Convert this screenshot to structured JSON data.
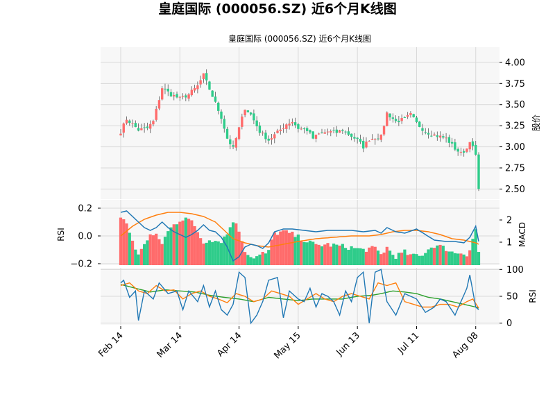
{
  "figure": {
    "suptitle": "皇庭国际 (000056.SZ) 近6个月K线图"
  },
  "colors": {
    "up": "#ff6b6b",
    "down": "#2ecc8a",
    "macd_line": "#1f77b4",
    "signal_line": "#ff7f0e",
    "rsi6": "#1f77b4",
    "rsi12": "#ff7f0e",
    "rsi24": "#2ca02c",
    "panel_bg": "#f7f7f7",
    "grid": "#d9d9d9"
  },
  "chart_data": [
    {
      "type": "candlestick",
      "title": "皇庭国际 (000056.SZ) 近6个月K线图",
      "ylabel": "股价",
      "ylim": [
        2.38,
        4.18
      ],
      "yticks": [
        2.5,
        2.75,
        3.0,
        3.25,
        3.5,
        3.75,
        4.0
      ],
      "x_ticks": [
        "Feb 14",
        "Mar 14",
        "Apr 14",
        "May 15",
        "Jun 13",
        "Jul 11",
        "Aug 08"
      ],
      "x_tick_index": [
        0,
        20,
        40,
        60,
        80,
        100,
        120
      ],
      "n_bars": 122,
      "grid": true,
      "close_anchors": [
        [
          0,
          3.18
        ],
        [
          2,
          3.33
        ],
        [
          6,
          3.2
        ],
        [
          9,
          3.22
        ],
        [
          11,
          3.3
        ],
        [
          14,
          3.7
        ],
        [
          17,
          3.62
        ],
        [
          20,
          3.57
        ],
        [
          23,
          3.62
        ],
        [
          26,
          3.72
        ],
        [
          28,
          3.85
        ],
        [
          31,
          3.6
        ],
        [
          34,
          3.35
        ],
        [
          36,
          3.1
        ],
        [
          38,
          2.98
        ],
        [
          40,
          3.22
        ],
        [
          42,
          3.46
        ],
        [
          44,
          3.38
        ],
        [
          47,
          3.18
        ],
        [
          50,
          3.08
        ],
        [
          53,
          3.17
        ],
        [
          56,
          3.27
        ],
        [
          58,
          3.3
        ],
        [
          60,
          3.22
        ],
        [
          63,
          3.2
        ],
        [
          65,
          3.1
        ],
        [
          67,
          3.15
        ],
        [
          70,
          3.18
        ],
        [
          73,
          3.17
        ],
        [
          75,
          3.2
        ],
        [
          77,
          3.15
        ],
        [
          80,
          3.08
        ],
        [
          82,
          3.0
        ],
        [
          84,
          3.09
        ],
        [
          88,
          3.12
        ],
        [
          90,
          3.4
        ],
        [
          93,
          3.3
        ],
        [
          96,
          3.33
        ],
        [
          98,
          3.38
        ],
        [
          100,
          3.28
        ],
        [
          103,
          3.18
        ],
        [
          106,
          3.14
        ],
        [
          110,
          3.1
        ],
        [
          113,
          2.98
        ],
        [
          115,
          2.92
        ],
        [
          117,
          2.98
        ],
        [
          118,
          3.08
        ],
        [
          120,
          2.9
        ],
        [
          121,
          2.5
        ]
      ],
      "ohlc_note": "daily bars for about six months of trading"
    },
    {
      "type": "bar+line",
      "ylabel": "MACD",
      "left_ticks": [
        "0.2",
        "0.0",
        "−0.2"
      ],
      "left_tick_values": [
        0.2,
        0.0,
        -0.2
      ],
      "right_ticks": [
        "2",
        "1"
      ],
      "right_tick_values": [
        2,
        1
      ],
      "ylim_left": [
        -0.21,
        0.26
      ],
      "macd_anchors": [
        [
          0,
          0.17
        ],
        [
          2,
          0.18
        ],
        [
          5,
          0.12
        ],
        [
          8,
          0.06
        ],
        [
          10,
          0.04
        ],
        [
          12,
          0.06
        ],
        [
          14,
          0.1
        ],
        [
          16,
          0.06
        ],
        [
          18,
          0.03
        ],
        [
          20,
          0.01
        ],
        [
          22,
          -0.01
        ],
        [
          24,
          0.01
        ],
        [
          26,
          0.04
        ],
        [
          28,
          0.08
        ],
        [
          30,
          0.04
        ],
        [
          32,
          0.03
        ],
        [
          34,
          -0.01
        ],
        [
          36,
          -0.08
        ],
        [
          38,
          -0.18
        ],
        [
          40,
          -0.15
        ],
        [
          42,
          -0.08
        ],
        [
          44,
          -0.06
        ],
        [
          46,
          -0.07
        ],
        [
          48,
          -0.09
        ],
        [
          50,
          -0.05
        ],
        [
          52,
          0.03
        ],
        [
          55,
          0.05
        ],
        [
          58,
          0.05
        ],
        [
          62,
          0.04
        ],
        [
          66,
          0.03
        ],
        [
          70,
          0.04
        ],
        [
          74,
          0.04
        ],
        [
          78,
          0.04
        ],
        [
          82,
          0.03
        ],
        [
          86,
          0.04
        ],
        [
          88,
          0.02
        ],
        [
          90,
          0.06
        ],
        [
          93,
          0.03
        ],
        [
          96,
          0.02
        ],
        [
          100,
          0.05
        ],
        [
          103,
          0.01
        ],
        [
          106,
          -0.03
        ],
        [
          110,
          -0.04
        ],
        [
          113,
          -0.04
        ],
        [
          116,
          -0.05
        ],
        [
          118,
          -0.01
        ],
        [
          120,
          0.07
        ],
        [
          121,
          -0.04
        ]
      ],
      "signal_anchors": [
        [
          0,
          0.0
        ],
        [
          4,
          0.07
        ],
        [
          8,
          0.12
        ],
        [
          12,
          0.15
        ],
        [
          16,
          0.17
        ],
        [
          20,
          0.17
        ],
        [
          24,
          0.16
        ],
        [
          28,
          0.14
        ],
        [
          32,
          0.1
        ],
        [
          35,
          0.04
        ],
        [
          38,
          -0.02
        ],
        [
          42,
          -0.05
        ],
        [
          46,
          -0.07
        ],
        [
          50,
          -0.08
        ],
        [
          55,
          -0.06
        ],
        [
          60,
          -0.04
        ],
        [
          66,
          -0.02
        ],
        [
          72,
          -0.01
        ],
        [
          78,
          0.0
        ],
        [
          84,
          0.0
        ],
        [
          88,
          0.01
        ],
        [
          92,
          0.03
        ],
        [
          96,
          0.04
        ],
        [
          100,
          0.04
        ],
        [
          104,
          0.03
        ],
        [
          108,
          0.01
        ],
        [
          112,
          -0.02
        ],
        [
          116,
          -0.03
        ],
        [
          120,
          -0.05
        ],
        [
          121,
          -0.06
        ]
      ],
      "histogram_note": "bars drawn upward from panel base, coloured by candle direction"
    },
    {
      "type": "line",
      "ylabel": "RSI",
      "ylim": [
        -3,
        103
      ],
      "yticks": [
        0,
        50,
        100
      ],
      "series_anchors": {
        "rsi6": [
          [
            0,
            75
          ],
          [
            1,
            80
          ],
          [
            3,
            48
          ],
          [
            5,
            60
          ],
          [
            6,
            5
          ],
          [
            8,
            60
          ],
          [
            11,
            45
          ],
          [
            13,
            75
          ],
          [
            16,
            55
          ],
          [
            19,
            60
          ],
          [
            21,
            25
          ],
          [
            23,
            60
          ],
          [
            26,
            40
          ],
          [
            28,
            70
          ],
          [
            30,
            30
          ],
          [
            32,
            60
          ],
          [
            34,
            25
          ],
          [
            36,
            15
          ],
          [
            38,
            35
          ],
          [
            40,
            95
          ],
          [
            42,
            85
          ],
          [
            44,
            0
          ],
          [
            46,
            15
          ],
          [
            48,
            40
          ],
          [
            50,
            80
          ],
          [
            53,
            85
          ],
          [
            55,
            10
          ],
          [
            57,
            60
          ],
          [
            60,
            45
          ],
          [
            62,
            40
          ],
          [
            64,
            65
          ],
          [
            66,
            30
          ],
          [
            68,
            55
          ],
          [
            70,
            50
          ],
          [
            72,
            40
          ],
          [
            74,
            15
          ],
          [
            76,
            60
          ],
          [
            78,
            40
          ],
          [
            80,
            85
          ],
          [
            82,
            95
          ],
          [
            84,
            0
          ],
          [
            86,
            95
          ],
          [
            88,
            100
          ],
          [
            90,
            40
          ],
          [
            93,
            15
          ],
          [
            96,
            55
          ],
          [
            100,
            45
          ],
          [
            103,
            20
          ],
          [
            106,
            30
          ],
          [
            108,
            45
          ],
          [
            110,
            40
          ],
          [
            113,
            15
          ],
          [
            115,
            40
          ],
          [
            117,
            65
          ],
          [
            118,
            90
          ],
          [
            120,
            30
          ],
          [
            121,
            25
          ]
        ],
        "rsi12": [
          [
            0,
            70
          ],
          [
            3,
            75
          ],
          [
            6,
            60
          ],
          [
            9,
            55
          ],
          [
            12,
            70
          ],
          [
            15,
            60
          ],
          [
            18,
            62
          ],
          [
            21,
            45
          ],
          [
            24,
            55
          ],
          [
            27,
            60
          ],
          [
            30,
            50
          ],
          [
            33,
            45
          ],
          [
            36,
            38
          ],
          [
            39,
            55
          ],
          [
            42,
            50
          ],
          [
            45,
            40
          ],
          [
            48,
            45
          ],
          [
            51,
            60
          ],
          [
            54,
            55
          ],
          [
            57,
            50
          ],
          [
            60,
            35
          ],
          [
            63,
            45
          ],
          [
            66,
            55
          ],
          [
            69,
            45
          ],
          [
            72,
            40
          ],
          [
            75,
            50
          ],
          [
            78,
            55
          ],
          [
            81,
            50
          ],
          [
            84,
            45
          ],
          [
            87,
            75
          ],
          [
            90,
            70
          ],
          [
            93,
            75
          ],
          [
            96,
            40
          ],
          [
            99,
            35
          ],
          [
            102,
            30
          ],
          [
            105,
            30
          ],
          [
            108,
            35
          ],
          [
            111,
            35
          ],
          [
            114,
            30
          ],
          [
            117,
            40
          ],
          [
            119,
            45
          ],
          [
            121,
            28
          ]
        ],
        "rsi24": [
          [
            0,
            72
          ],
          [
            5,
            65
          ],
          [
            10,
            58
          ],
          [
            15,
            62
          ],
          [
            20,
            60
          ],
          [
            25,
            58
          ],
          [
            30,
            52
          ],
          [
            35,
            48
          ],
          [
            40,
            45
          ],
          [
            45,
            40
          ],
          [
            50,
            48
          ],
          [
            55,
            45
          ],
          [
            60,
            42
          ],
          [
            65,
            45
          ],
          [
            70,
            45
          ],
          [
            75,
            45
          ],
          [
            80,
            50
          ],
          [
            85,
            52
          ],
          [
            88,
            55
          ],
          [
            92,
            60
          ],
          [
            96,
            58
          ],
          [
            100,
            55
          ],
          [
            104,
            48
          ],
          [
            108,
            45
          ],
          [
            112,
            40
          ],
          [
            116,
            35
          ],
          [
            120,
            30
          ],
          [
            121,
            28
          ]
        ]
      }
    }
  ]
}
